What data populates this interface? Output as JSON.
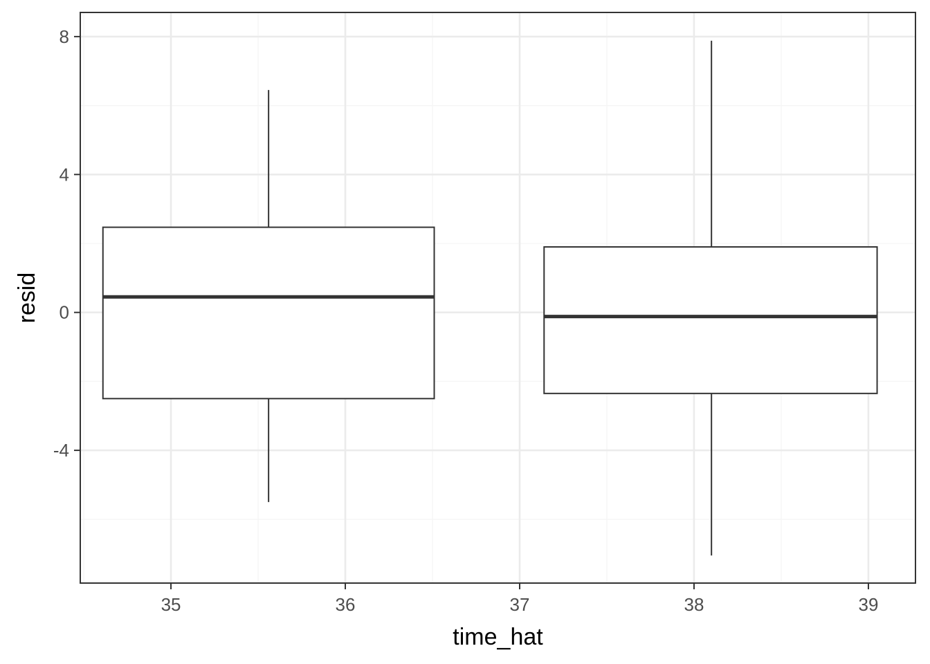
{
  "chart_data": {
    "type": "boxplot",
    "xlabel": "time_hat",
    "ylabel": "resid",
    "xlim": [
      34.48,
      39.27
    ],
    "ylim": [
      -7.85,
      8.7
    ],
    "x_ticks": [
      35,
      36,
      37,
      38,
      39
    ],
    "y_ticks": [
      -4,
      0,
      4,
      8
    ],
    "x_minor_ticks": [
      34.5,
      35.5,
      36.5,
      37.5,
      38.5
    ],
    "y_minor_ticks": [
      -6,
      -2,
      2,
      6
    ],
    "grid": true,
    "theme": "bw",
    "colors": {
      "box_outline": "#333333",
      "median": "#333333",
      "grid_major": "#ebebeb",
      "grid_minor": "#f5f5f5",
      "panel_border": "#333333"
    },
    "boxes": [
      {
        "x_left": 34.61,
        "x_center": 35.56,
        "x_right": 36.51,
        "whisker_low": -5.5,
        "q1": -2.5,
        "median": 0.45,
        "q3": 2.47,
        "whisker_high": 6.45
      },
      {
        "x_left": 37.14,
        "x_center": 38.1,
        "x_right": 39.05,
        "whisker_low": -7.05,
        "q1": -2.35,
        "median": -0.12,
        "q3": 1.9,
        "whisker_high": 7.88
      }
    ]
  }
}
